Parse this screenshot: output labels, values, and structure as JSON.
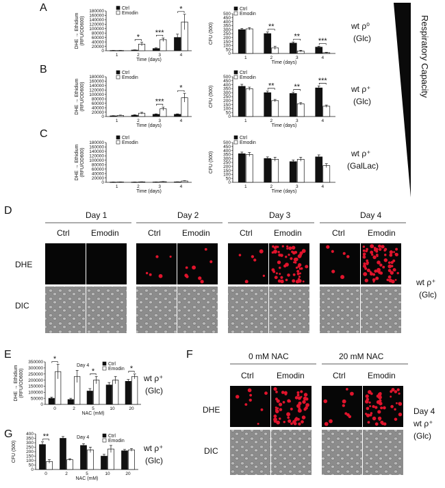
{
  "figure": {
    "panel_letters": {
      "A": "A",
      "B": "B",
      "C": "C",
      "D": "D",
      "E": "E",
      "F": "F",
      "G": "G"
    },
    "respiratory_label": "Respiratory Capacity",
    "legend": {
      "ctrl": "Ctrl",
      "emodin": "Emodin"
    },
    "colors": {
      "ctrl": "#111111",
      "emodin": "#ffffff",
      "dhe_spot": "#e0142c"
    },
    "conditions": {
      "A": {
        "line1": "wt ρ⁰",
        "line2": "(Glc)"
      },
      "B": {
        "line1": "wt ρ⁺",
        "line2": "(Glc)"
      },
      "C": {
        "line1": "wt ρ⁺",
        "line2": "(GalLac)"
      },
      "D": {
        "line1": "wt ρ⁺",
        "line2": "(Glc)"
      },
      "E": {
        "line1": "wt ρ⁺",
        "line2": "(Glc)"
      },
      "F": {
        "line1": "Day 4",
        "line2": "wt ρ⁺",
        "line3": "(Glc)"
      },
      "G": {
        "line1": "wt ρ⁺",
        "line2": "(Glc)"
      }
    },
    "panel_D": {
      "days": [
        "Day 1",
        "Day 2",
        "Day 3",
        "Day 4"
      ],
      "columns": [
        "Ctrl",
        "Emodin"
      ],
      "rows": [
        "DHE",
        "DIC"
      ]
    },
    "panel_F": {
      "groups": [
        "0 mM NAC",
        "20 mM NAC"
      ],
      "columns": [
        "Ctrl",
        "Emodin"
      ],
      "rows": [
        "DHE",
        "DIC"
      ]
    }
  },
  "chart_data": [
    {
      "id": "A-left",
      "type": "bar",
      "title": "",
      "xlabel": "Time (days)",
      "ylabel_line1": "DHE → Ethidium",
      "ylabel_line2": "(RFU/OD600)",
      "categories": [
        "1",
        "2",
        "3",
        "4"
      ],
      "ylim": [
        0,
        180000
      ],
      "yticks": [
        "0",
        "20000",
        "40000",
        "60000",
        "80000",
        "100000",
        "120000",
        "140000",
        "160000",
        "180000"
      ],
      "series": [
        {
          "name": "Ctrl",
          "values": [
            1000,
            3000,
            10000,
            60000
          ],
          "errors": [
            500,
            1000,
            3000,
            15000
          ]
        },
        {
          "name": "Emodin",
          "values": [
            1000,
            30000,
            50000,
            130000
          ],
          "errors": [
            500,
            8000,
            8000,
            35000
          ]
        }
      ],
      "significance": [
        "",
        "*",
        "***",
        "*"
      ]
    },
    {
      "id": "A-right",
      "type": "bar",
      "title": "",
      "xlabel": "Time (days)",
      "ylabel": "CFU (500)",
      "categories": [
        "1",
        "2",
        "3",
        "4"
      ],
      "ylim": [
        0,
        500
      ],
      "yticks": [
        "0",
        "50",
        "100",
        "150",
        "200",
        "250",
        "300",
        "350",
        "400",
        "450",
        "500"
      ],
      "series": [
        {
          "name": "Ctrl",
          "values": [
            300,
            250,
            130,
            80
          ],
          "errors": [
            15,
            20,
            15,
            10
          ]
        },
        {
          "name": "Emodin",
          "values": [
            310,
            70,
            30,
            10
          ],
          "errors": [
            15,
            20,
            10,
            5
          ]
        }
      ],
      "significance": [
        "",
        "**",
        "**",
        "***"
      ]
    },
    {
      "id": "B-left",
      "type": "bar",
      "title": "",
      "xlabel": "Time (days)",
      "ylabel_line1": "DHE → Ethidium",
      "ylabel_line2": "(RFU/OD600)",
      "categories": [
        "1",
        "2",
        "3",
        "4"
      ],
      "ylim": [
        0,
        180000
      ],
      "yticks": [
        "0",
        "20000",
        "40000",
        "60000",
        "80000",
        "100000",
        "120000",
        "140000",
        "160000",
        "180000"
      ],
      "series": [
        {
          "name": "Ctrl",
          "values": [
            3000,
            6000,
            10000,
            10000
          ],
          "errors": [
            1000,
            2000,
            2000,
            2000
          ]
        },
        {
          "name": "Emodin",
          "values": [
            5000,
            15000,
            35000,
            85000
          ],
          "errors": [
            1500,
            4000,
            8000,
            20000
          ]
        }
      ],
      "significance": [
        "",
        "",
        "***",
        "*"
      ]
    },
    {
      "id": "B-right",
      "type": "bar",
      "title": "",
      "xlabel": "Time (days)",
      "ylabel": "CFU (500)",
      "categories": [
        "1",
        "2",
        "3",
        "4"
      ],
      "ylim": [
        0,
        500
      ],
      "yticks": [
        "0",
        "50",
        "100",
        "150",
        "200",
        "250",
        "300",
        "350",
        "400",
        "450",
        "500"
      ],
      "series": [
        {
          "name": "Ctrl",
          "values": [
            380,
            300,
            290,
            360
          ],
          "errors": [
            25,
            20,
            15,
            25
          ]
        },
        {
          "name": "Emodin",
          "values": [
            350,
            200,
            160,
            130
          ],
          "errors": [
            20,
            15,
            15,
            15
          ]
        }
      ],
      "significance": [
        "",
        "**",
        "**",
        "***"
      ]
    },
    {
      "id": "C-left",
      "type": "bar",
      "title": "",
      "xlabel": "Time (days)",
      "ylabel_line1": "DHE → Ethidium",
      "ylabel_line2": "(RFU/OD600)",
      "categories": [
        "1",
        "2",
        "3",
        "4"
      ],
      "ylim": [
        0,
        180000
      ],
      "yticks": [
        "0",
        "20000",
        "40000",
        "60000",
        "80000",
        "100000",
        "120000",
        "140000",
        "160000",
        "180000"
      ],
      "series": [
        {
          "name": "Ctrl",
          "values": [
            1000,
            1000,
            1500,
            2000
          ],
          "errors": [
            500,
            500,
            500,
            500
          ]
        },
        {
          "name": "Emodin",
          "values": [
            1500,
            2000,
            3000,
            6000
          ],
          "errors": [
            500,
            500,
            800,
            1500
          ]
        }
      ],
      "significance": [
        "",
        "",
        "",
        ""
      ]
    },
    {
      "id": "C-right",
      "type": "bar",
      "title": "",
      "xlabel": "Time (days)",
      "ylabel": "CFU (500)",
      "categories": [
        "1",
        "2",
        "3",
        "4"
      ],
      "ylim": [
        0,
        500
      ],
      "yticks": [
        "0",
        "50",
        "100",
        "150",
        "200",
        "250",
        "300",
        "350",
        "400",
        "450",
        "500"
      ],
      "series": [
        {
          "name": "Ctrl",
          "values": [
            360,
            300,
            260,
            320
          ],
          "errors": [
            20,
            20,
            20,
            25
          ]
        },
        {
          "name": "Emodin",
          "values": [
            350,
            290,
            290,
            210
          ],
          "errors": [
            25,
            25,
            25,
            25
          ]
        }
      ],
      "significance": [
        "",
        "",
        "",
        ""
      ]
    },
    {
      "id": "E",
      "type": "bar",
      "title": "Day 4",
      "xlabel": "NAC (mM)",
      "ylabel_line1": "DHE → Ethidium",
      "ylabel_line2": "(RFU/OD600)",
      "categories": [
        "0",
        "2",
        "5",
        "10",
        "20"
      ],
      "ylim": [
        0,
        350000
      ],
      "yticks": [
        "0",
        "50000",
        "100000",
        "150000",
        "200000",
        "250000",
        "300000",
        "350000"
      ],
      "series": [
        {
          "name": "Ctrl",
          "values": [
            50000,
            40000,
            110000,
            160000,
            190000
          ],
          "errors": [
            10000,
            10000,
            20000,
            20000,
            15000
          ]
        },
        {
          "name": "Emodin",
          "values": [
            270000,
            230000,
            200000,
            200000,
            230000
          ],
          "errors": [
            60000,
            50000,
            30000,
            30000,
            20000
          ]
        }
      ],
      "significance": [
        "*",
        "",
        "*",
        "",
        "*"
      ]
    },
    {
      "id": "G",
      "type": "bar",
      "title": "Day 4",
      "xlabel": "NAC (mM)",
      "ylabel": "CFU (500)",
      "categories": [
        "0",
        "2",
        "5",
        "10",
        "20"
      ],
      "ylim": [
        0,
        400
      ],
      "yticks": [
        "0",
        "50",
        "100",
        "150",
        "200",
        "250",
        "300",
        "350",
        "400"
      ],
      "series": [
        {
          "name": "Ctrl",
          "values": [
            280,
            350,
            270,
            150,
            210
          ],
          "errors": [
            30,
            20,
            20,
            20,
            15
          ]
        },
        {
          "name": "Emodin",
          "values": [
            90,
            110,
            220,
            230,
            220
          ],
          "errors": [
            20,
            10,
            30,
            40,
            15
          ]
        }
      ],
      "significance": [
        "**",
        "",
        "",
        "",
        ""
      ]
    }
  ]
}
